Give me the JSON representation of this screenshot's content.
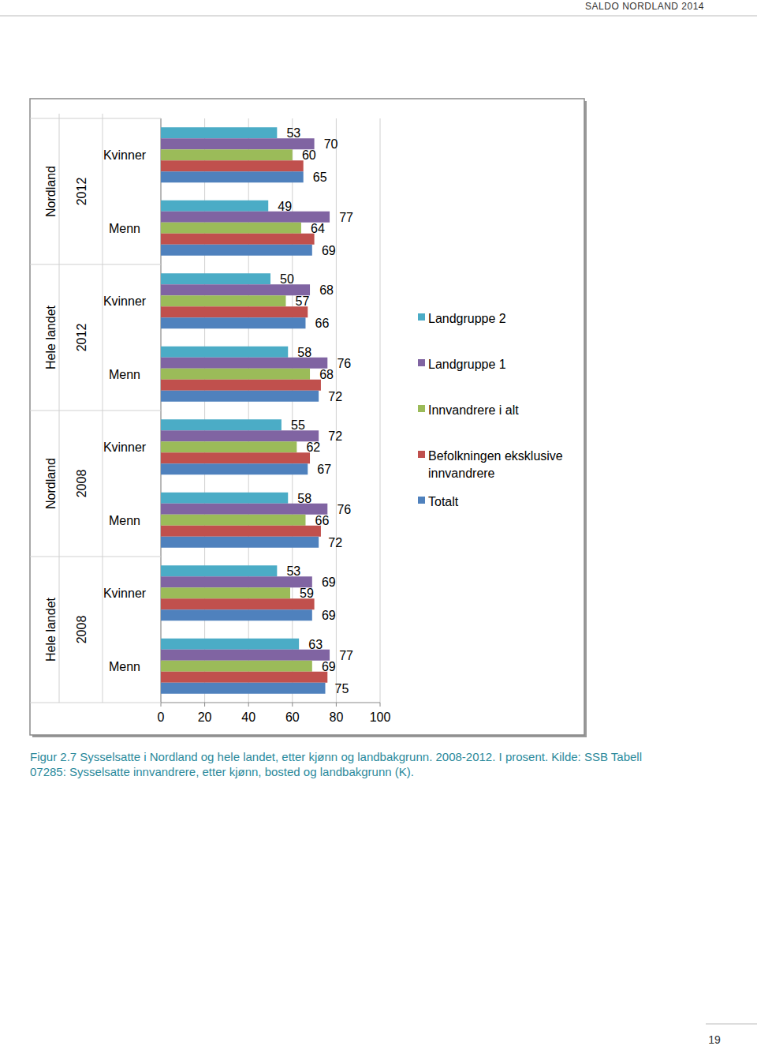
{
  "page_header": "SALDO NORDLAND 2014",
  "page_number": "19",
  "chart_data": {
    "type": "bar",
    "orientation": "horizontal",
    "caption": "Figur 2.7 Sysselsatte i Nordland og hele landet, etter kjønn og landbakgrunn. 2008-2012. I prosent. Kilde: SSB Tabell 07285: Sysselsatte innvandrere, etter kjønn, bosted og landbakgrunn (K).",
    "categories": [
      "Kvinner",
      "Menn",
      "Kvinner",
      "Menn",
      "Kvinner",
      "Menn",
      "Kvinner",
      "Menn"
    ],
    "regions": [
      "Nordland",
      "Hele landet",
      "Nordland",
      "Hele landet"
    ],
    "years": [
      "2012",
      "2012",
      "2008",
      "2008"
    ],
    "series": [
      {
        "name": "Landgruppe 2",
        "color": "#4bacc6",
        "values": [
          53,
          49,
          50,
          58,
          55,
          58,
          53,
          63
        ]
      },
      {
        "name": "Landgruppe 1",
        "color": "#8064a2",
        "values": [
          70,
          77,
          68,
          76,
          72,
          76,
          69,
          77
        ]
      },
      {
        "name": "Innvandrere i alt",
        "color": "#9bbb59",
        "values": [
          60,
          64,
          57,
          68,
          62,
          66,
          59,
          69
        ]
      },
      {
        "name": "Befolkningen eksklusive innvandrere",
        "color": "#c0504d",
        "values": [
          65,
          70,
          67,
          73,
          68,
          73,
          70,
          76
        ],
        "value_labels": [
          null,
          null,
          null,
          null,
          null,
          null,
          null,
          null
        ]
      },
      {
        "name": "Totalt",
        "color": "#4f81bd",
        "values": [
          65,
          69,
          66,
          72,
          67,
          72,
          69,
          75
        ]
      }
    ],
    "xlim": [
      0,
      100
    ],
    "xticks": [
      0,
      20,
      40,
      60,
      80,
      100
    ],
    "grid": true,
    "data_labels": true,
    "legend": "right"
  }
}
